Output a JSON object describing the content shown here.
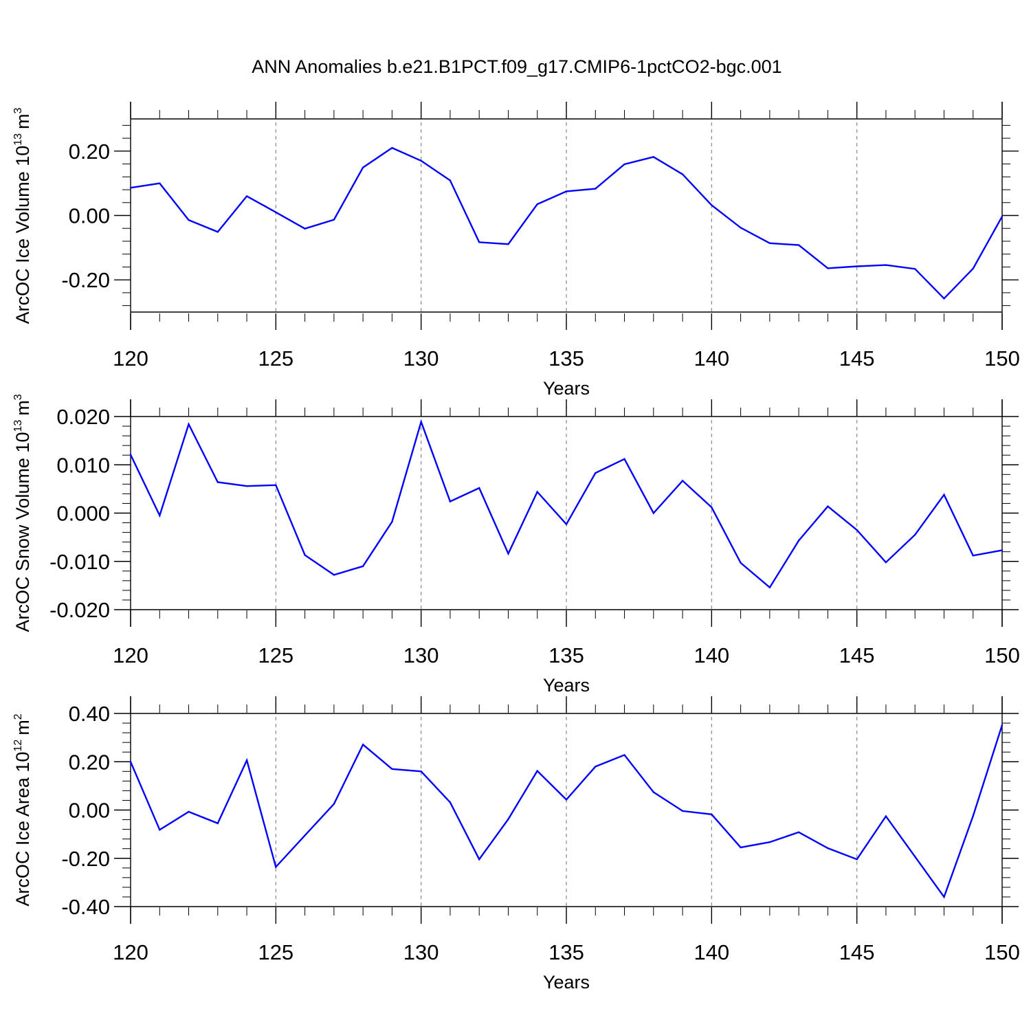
{
  "figure": {
    "title": "ANN Anomalies b.e21.B1PCT.f09_g17.CMIP6-1pctCO2-bgc.001",
    "line_color": "#0000ff",
    "grid_color": "#888888"
  },
  "chart_data": [
    {
      "type": "line",
      "xlabel": "Years",
      "ylabel": "ArcOC Ice Volume",
      "ylabel_unit": "10",
      "ylabel_exp": "13",
      "ylabel_unit2": "m",
      "ylabel_exp2": "3",
      "xlim": [
        120,
        150
      ],
      "ylim": [
        -0.3,
        0.3
      ],
      "x_ticks": [
        120,
        125,
        130,
        135,
        140,
        145,
        150
      ],
      "x_tick_labels": [
        "120",
        "125",
        "130",
        "135",
        "140",
        "145",
        "150"
      ],
      "y_ticks": [
        -0.2,
        0.0,
        0.2
      ],
      "y_tick_labels": [
        "-0.20",
        "0.00",
        "0.20"
      ],
      "grid": "vertical-dashed",
      "x": [
        120,
        121,
        122,
        123,
        124,
        125,
        126,
        127,
        128,
        129,
        130,
        131,
        132,
        133,
        134,
        135,
        136,
        137,
        138,
        139,
        140,
        141,
        142,
        143,
        144,
        145,
        146,
        147,
        148,
        149,
        150
      ],
      "values": [
        0.086,
        0.1,
        -0.014,
        -0.051,
        0.06,
        0.01,
        -0.041,
        -0.013,
        0.149,
        0.21,
        0.17,
        0.109,
        -0.083,
        -0.089,
        0.035,
        0.075,
        0.083,
        0.159,
        0.182,
        0.128,
        0.032,
        -0.038,
        -0.086,
        -0.092,
        -0.164,
        -0.158,
        -0.154,
        -0.166,
        -0.258,
        -0.165,
        -0.003
      ]
    },
    {
      "type": "line",
      "xlabel": "Years",
      "ylabel": "ArcOC Snow Volume",
      "ylabel_unit": "10",
      "ylabel_exp": "13",
      "ylabel_unit2": "m",
      "ylabel_exp2": "3",
      "xlim": [
        120,
        150
      ],
      "ylim": [
        -0.02,
        0.02
      ],
      "x_ticks": [
        120,
        125,
        130,
        135,
        140,
        145,
        150
      ],
      "x_tick_labels": [
        "120",
        "125",
        "130",
        "135",
        "140",
        "145",
        "150"
      ],
      "y_ticks": [
        -0.02,
        -0.01,
        0.0,
        0.01,
        0.02
      ],
      "y_tick_labels": [
        "-0.020",
        "-0.010",
        "0.000",
        "0.010",
        "0.020"
      ],
      "grid": "vertical-dashed",
      "x": [
        120,
        121,
        122,
        123,
        124,
        125,
        126,
        127,
        128,
        129,
        130,
        131,
        132,
        133,
        134,
        135,
        136,
        137,
        138,
        139,
        140,
        141,
        142,
        143,
        144,
        145,
        146,
        147,
        148,
        149,
        150
      ],
      "values": [
        0.0121,
        -0.0005,
        0.0184,
        0.0064,
        0.0056,
        0.0058,
        -0.0087,
        -0.0128,
        -0.011,
        -0.0018,
        0.0189,
        0.0024,
        0.0052,
        -0.0084,
        0.0044,
        -0.0023,
        0.0083,
        0.0112,
        0.0,
        0.0067,
        0.0012,
        -0.0103,
        -0.0154,
        -0.0057,
        0.0014,
        -0.0035,
        -0.0102,
        -0.0045,
        0.0038,
        -0.0088,
        -0.0077
      ]
    },
    {
      "type": "line",
      "xlabel": "Years",
      "ylabel": "ArcOC Ice Area",
      "ylabel_unit": "10",
      "ylabel_exp": "12",
      "ylabel_unit2": "m",
      "ylabel_exp2": "2",
      "xlim": [
        120,
        150
      ],
      "ylim": [
        -0.4,
        0.4
      ],
      "x_ticks": [
        120,
        125,
        130,
        135,
        140,
        145,
        150
      ],
      "x_tick_labels": [
        "120",
        "125",
        "130",
        "135",
        "140",
        "145",
        "150"
      ],
      "y_ticks": [
        -0.4,
        -0.2,
        0.0,
        0.2,
        0.4
      ],
      "y_tick_labels": [
        "-0.40",
        "-0.20",
        "0.00",
        "0.20",
        "0.40"
      ],
      "grid": "vertical-dashed",
      "x": [
        120,
        121,
        122,
        123,
        124,
        125,
        126,
        127,
        128,
        129,
        130,
        131,
        132,
        133,
        134,
        135,
        136,
        137,
        138,
        139,
        140,
        141,
        142,
        143,
        144,
        145,
        146,
        147,
        148,
        149,
        150
      ],
      "values": [
        0.2,
        -0.082,
        -0.007,
        -0.055,
        0.206,
        -0.236,
        -0.105,
        0.025,
        0.271,
        0.17,
        0.16,
        0.032,
        -0.204,
        -0.038,
        0.162,
        0.043,
        0.18,
        0.228,
        0.074,
        -0.004,
        -0.018,
        -0.155,
        -0.133,
        -0.092,
        -0.158,
        -0.204,
        -0.026,
        -0.193,
        -0.36,
        -0.025,
        0.352
      ]
    }
  ]
}
